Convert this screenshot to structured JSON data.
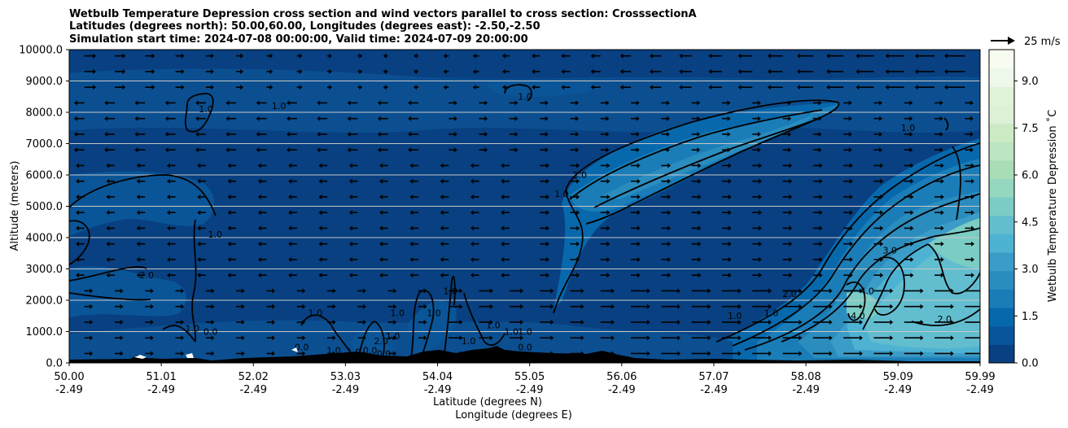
{
  "chart_data": {
    "type": "heatmap",
    "title_lines": [
      "Wetbulb Temperature Depression cross section and wind vectors parallel to cross section: CrosssectionA",
      "Latitudes (degrees north): 50.00,60.00, Longitudes (degrees east): -2.50,-2.50",
      "Simulation start time: 2024-07-08 00:00:00, Valid time: 2024-07-09 20:00:00"
    ],
    "ylabel": "Altitude (meters)",
    "xlabel_lines": [
      "Latitude (degrees N)",
      "Longitude (degrees E)"
    ],
    "colorbar_label": "Wetbulb Temperature Depression ˚C",
    "x_range": [
      50.0,
      59.99
    ],
    "y_range": [
      0,
      10000
    ],
    "grid": "horizontal",
    "x_ticks": [
      {
        "lat": "50.00",
        "lon": "-2.49",
        "v": 50.0
      },
      {
        "lat": "51.01",
        "lon": "-2.49",
        "v": 51.01
      },
      {
        "lat": "52.02",
        "lon": "-2.49",
        "v": 52.02
      },
      {
        "lat": "53.03",
        "lon": "-2.49",
        "v": 53.03
      },
      {
        "lat": "54.04",
        "lon": "-2.49",
        "v": 54.04
      },
      {
        "lat": "55.05",
        "lon": "-2.49",
        "v": 55.05
      },
      {
        "lat": "56.06",
        "lon": "-2.49",
        "v": 56.06
      },
      {
        "lat": "57.07",
        "lon": "-2.49",
        "v": 57.07
      },
      {
        "lat": "58.08",
        "lon": "-2.49",
        "v": 58.08
      },
      {
        "lat": "59.09",
        "lon": "-2.49",
        "v": 59.09
      },
      {
        "lat": "59.99",
        "lon": "-2.49",
        "v": 59.99
      }
    ],
    "y_ticks": [
      "0.0",
      "1000.0",
      "2000.0",
      "3000.0",
      "4000.0",
      "5000.0",
      "6000.0",
      "7000.0",
      "8000.0",
      "9000.0",
      "10000.0"
    ],
    "colorbar": {
      "range": [
        0,
        10
      ],
      "ticks": [
        "0.0",
        "1.5",
        "3.0",
        "4.5",
        "6.0",
        "7.5",
        "9.0"
      ],
      "colors": [
        "#084081",
        "#08559b",
        "#0868ac",
        "#1a7db7",
        "#2b8cbe",
        "#3b9cc7",
        "#4eb3d3",
        "#62bdcf",
        "#7bccc4",
        "#95d6bf",
        "#a8ddb5",
        "#bce5c3",
        "#ccebc5",
        "#dcf1d8",
        "#e0f3db",
        "#eef8ea",
        "#f7fcf0"
      ]
    },
    "quiver_key": "25 m/s",
    "contour_labels": [
      {
        "text": "1.0",
        "x": 51.5,
        "y": 8000
      },
      {
        "text": "1.0",
        "x": 52.3,
        "y": 8100
      },
      {
        "text": "1.0",
        "x": 55.0,
        "y": 8400
      },
      {
        "text": "1.0",
        "x": 59.2,
        "y": 7400
      },
      {
        "text": "1.0",
        "x": 55.4,
        "y": 5300
      },
      {
        "text": "2.0",
        "x": 55.6,
        "y": 5900
      },
      {
        "text": "1.0",
        "x": 51.6,
        "y": 4000
      },
      {
        "text": "2.0",
        "x": 50.85,
        "y": 2700
      },
      {
        "text": "3.0",
        "x": 59.0,
        "y": 3500
      },
      {
        "text": "1.0",
        "x": 57.7,
        "y": 1500
      },
      {
        "text": "2.0",
        "x": 57.9,
        "y": 2100
      },
      {
        "text": "4.0",
        "x": 58.75,
        "y": 2200
      },
      {
        "text": "4.0",
        "x": 58.65,
        "y": 1400
      },
      {
        "text": "2.0",
        "x": 59.6,
        "y": 1300
      },
      {
        "text": "1.0",
        "x": 57.3,
        "y": 1400
      },
      {
        "text": "0.0",
        "x": 51.55,
        "y": 900
      },
      {
        "text": "1.0",
        "x": 51.35,
        "y": 1000
      },
      {
        "text": "1.0",
        "x": 52.7,
        "y": 1500
      },
      {
        "text": "0.0",
        "x": 52.55,
        "y": 400
      },
      {
        "text": "1.0",
        "x": 52.9,
        "y": 300
      },
      {
        "text": "1.0",
        "x": 53.12,
        "y": 250
      },
      {
        "text": "2.0",
        "x": 53.42,
        "y": 600
      },
      {
        "text": "1.0",
        "x": 53.6,
        "y": 1500
      },
      {
        "text": "0.0",
        "x": 53.45,
        "y": 200
      },
      {
        "text": "1.0",
        "x": 53.55,
        "y": 750
      },
      {
        "text": "1.0",
        "x": 54.0,
        "y": 1500
      },
      {
        "text": "1.0",
        "x": 54.18,
        "y": 2200
      },
      {
        "text": "1.0",
        "x": 54.38,
        "y": 600
      },
      {
        "text": "1.0",
        "x": 54.65,
        "y": 1100
      },
      {
        "text": "1.0",
        "x": 54.85,
        "y": 900
      },
      {
        "text": "1.0",
        "x": 55.0,
        "y": 900
      },
      {
        "text": "0.0",
        "x": 55.0,
        "y": 400
      },
      {
        "text": "0.0",
        "x": 53.3,
        "y": 300
      }
    ]
  }
}
